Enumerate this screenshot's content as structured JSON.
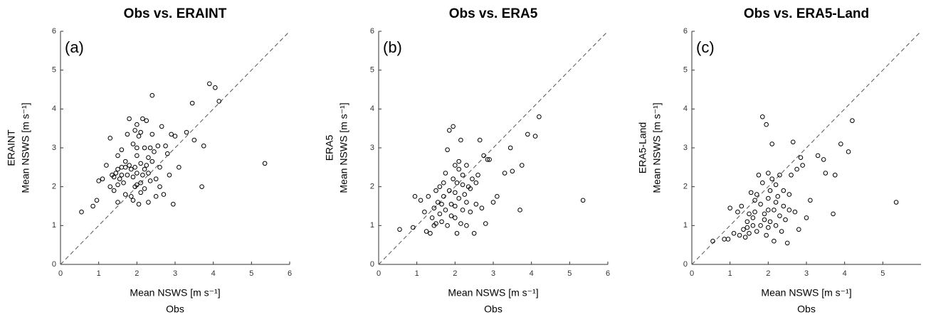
{
  "chart_data": [
    {
      "type": "scatter",
      "title": "Obs vs. ERAINT",
      "panel_label": "(a)",
      "xlabel": "Mean NSWS [m s⁻¹]",
      "xlabel2": "Obs",
      "ylabel": "Mean NSWS [m s⁻¹]",
      "ylabel2": "ERAINT",
      "color": "#000000",
      "diagonal": true,
      "xlim": [
        0,
        6
      ],
      "ylim": [
        0,
        6
      ],
      "xticks": [
        0,
        1,
        2,
        3,
        4,
        5,
        6
      ],
      "yticks": [
        0,
        1,
        2,
        3,
        4,
        5,
        6
      ],
      "x": [
        0.55,
        0.85,
        0.95,
        1.0,
        1.1,
        1.2,
        1.3,
        1.3,
        1.35,
        1.4,
        1.4,
        1.45,
        1.5,
        1.5,
        1.5,
        1.55,
        1.6,
        1.6,
        1.65,
        1.7,
        1.7,
        1.7,
        1.75,
        1.8,
        1.8,
        1.85,
        1.85,
        1.9,
        1.9,
        1.9,
        1.95,
        1.95,
        2.0,
        2.0,
        2.0,
        2.05,
        2.05,
        2.1,
        2.1,
        2.1,
        2.15,
        2.15,
        2.2,
        2.2,
        2.25,
        2.25,
        2.3,
        2.3,
        2.35,
        2.35,
        2.4,
        2.4,
        2.4,
        2.45,
        2.5,
        2.5,
        2.55,
        2.6,
        2.65,
        2.7,
        2.75,
        2.8,
        2.85,
        2.9,
        2.95,
        3.0,
        3.1,
        3.3,
        3.45,
        3.5,
        3.7,
        3.75,
        3.9,
        4.05,
        4.15,
        5.35,
        2.0,
        2.1,
        1.6,
        1.95,
        2.2,
        2.3,
        1.75,
        2.6,
        2.0,
        1.5
      ],
      "values": [
        1.35,
        1.5,
        1.65,
        2.15,
        2.2,
        2.55,
        2.0,
        3.25,
        2.3,
        1.9,
        2.25,
        2.35,
        1.6,
        2.05,
        2.8,
        2.2,
        2.5,
        2.95,
        2.1,
        1.8,
        2.5,
        2.65,
        2.3,
        3.75,
        2.55,
        1.75,
        2.45,
        3.1,
        2.25,
        1.65,
        3.45,
        2.0,
        3.6,
        2.8,
        2.35,
        1.55,
        3.3,
        3.4,
        2.6,
        2.1,
        3.75,
        2.3,
        3.0,
        1.95,
        3.7,
        2.55,
        2.35,
        1.6,
        3.0,
        2.15,
        4.35,
        3.35,
        2.65,
        2.9,
        2.2,
        1.75,
        3.05,
        2.5,
        3.55,
        1.8,
        3.05,
        2.85,
        2.3,
        3.35,
        1.55,
        3.3,
        2.5,
        3.4,
        4.15,
        3.2,
        2.0,
        3.05,
        4.65,
        4.55,
        4.2,
        2.6,
        2.05,
        1.85,
        2.3,
        2.5,
        2.45,
        2.75,
        3.35,
        2.0,
        3.0,
        2.45
      ]
    },
    {
      "type": "scatter",
      "title": "Obs vs. ERA5",
      "panel_label": "(b)",
      "xlabel": "Mean NSWS [m s⁻¹]",
      "xlabel2": "Obs",
      "ylabel": "Mean NSWS [m s⁻¹]",
      "ylabel2": "ERA5",
      "color": "#000000",
      "diagonal": true,
      "xlim": [
        0,
        6
      ],
      "ylim": [
        0,
        6
      ],
      "xticks": [
        0,
        1,
        2,
        3,
        4,
        5,
        6
      ],
      "yticks": [
        0,
        1,
        2,
        3,
        4,
        5,
        6
      ],
      "x": [
        0.55,
        0.9,
        0.95,
        1.1,
        1.2,
        1.25,
        1.3,
        1.35,
        1.4,
        1.45,
        1.5,
        1.5,
        1.55,
        1.6,
        1.6,
        1.65,
        1.7,
        1.75,
        1.75,
        1.8,
        1.8,
        1.85,
        1.85,
        1.9,
        1.95,
        1.95,
        2.0,
        2.0,
        2.05,
        2.05,
        2.1,
        2.1,
        2.15,
        2.15,
        2.2,
        2.2,
        2.25,
        2.3,
        2.3,
        2.35,
        2.4,
        2.45,
        2.5,
        2.55,
        2.6,
        2.65,
        2.7,
        2.75,
        2.8,
        2.85,
        2.9,
        3.0,
        3.1,
        3.3,
        3.45,
        3.5,
        3.7,
        3.75,
        3.9,
        4.1,
        4.2,
        5.35,
        1.7,
        1.9,
        2.0,
        2.2,
        2.4,
        2.1,
        1.65,
        2.55,
        2.3,
        1.45,
        2.0
      ],
      "values": [
        0.9,
        0.95,
        1.75,
        1.65,
        1.35,
        0.85,
        1.75,
        0.8,
        1.2,
        1.45,
        1.9,
        1.05,
        1.6,
        2.0,
        1.3,
        1.1,
        1.75,
        2.35,
        1.4,
        2.95,
        1.0,
        3.45,
        1.9,
        1.25,
        3.55,
        2.2,
        2.55,
        1.5,
        2.1,
        0.8,
        2.45,
        1.7,
        3.2,
        1.05,
        2.3,
        1.4,
        1.8,
        2.55,
        1.0,
        2.0,
        1.35,
        2.2,
        0.8,
        1.55,
        2.3,
        3.2,
        1.45,
        2.8,
        1.05,
        2.7,
        2.7,
        1.6,
        1.75,
        2.35,
        3.0,
        2.4,
        1.4,
        2.55,
        3.35,
        3.3,
        3.8,
        1.65,
        2.1,
        1.55,
        1.2,
        2.05,
        1.95,
        2.65,
        1.55,
        2.1,
        1.6,
        1.0,
        1.85
      ]
    },
    {
      "type": "scatter",
      "title": "Obs vs. ERA5-Land",
      "panel_label": "(c)",
      "xlabel": "Mean NSWS [m s⁻¹]",
      "xlabel2": "Obs",
      "ylabel": "Mean NSWS [m s⁻¹]",
      "ylabel2": "ERA5-Land",
      "color": "#000000",
      "diagonal": true,
      "xlim": [
        0,
        6
      ],
      "ylim": [
        0,
        6
      ],
      "xticks": [
        0,
        1,
        2,
        3,
        4,
        5
      ],
      "yticks": [
        0,
        1,
        2,
        3,
        4,
        5,
        6
      ],
      "x": [
        0.55,
        0.85,
        0.95,
        1.0,
        1.1,
        1.2,
        1.25,
        1.3,
        1.35,
        1.4,
        1.45,
        1.5,
        1.5,
        1.55,
        1.6,
        1.6,
        1.65,
        1.7,
        1.75,
        1.8,
        1.8,
        1.85,
        1.85,
        1.9,
        1.95,
        1.95,
        2.0,
        2.0,
        2.05,
        2.1,
        2.1,
        2.15,
        2.15,
        2.2,
        2.2,
        2.25,
        2.3,
        2.3,
        2.35,
        2.4,
        2.45,
        2.5,
        2.55,
        2.6,
        2.65,
        2.7,
        2.75,
        2.8,
        2.85,
        2.9,
        3.0,
        3.1,
        3.3,
        3.45,
        3.5,
        3.7,
        3.75,
        3.9,
        4.1,
        4.2,
        5.35,
        1.7,
        1.9,
        2.0,
        2.2,
        2.4,
        1.65,
        2.05,
        2.55,
        1.45,
        2.0
      ],
      "values": [
        0.6,
        0.65,
        0.65,
        1.45,
        0.8,
        1.35,
        0.75,
        1.5,
        0.9,
        0.7,
        1.1,
        1.3,
        0.8,
        1.85,
        1.0,
        1.2,
        1.65,
        0.85,
        2.3,
        1.55,
        1.0,
        3.8,
        2.1,
        1.3,
        3.6,
        0.75,
        2.35,
        1.7,
        1.1,
        2.2,
        3.1,
        1.4,
        0.6,
        2.05,
        1.0,
        1.75,
        2.3,
        1.25,
        0.85,
        1.9,
        1.15,
        0.55,
        1.4,
        2.3,
        3.15,
        1.35,
        2.45,
        0.9,
        2.75,
        2.55,
        1.2,
        1.65,
        2.8,
        2.7,
        2.35,
        1.3,
        2.3,
        3.1,
        2.9,
        3.7,
        1.6,
        1.8,
        1.15,
        0.95,
        1.6,
        1.5,
        1.35,
        1.9,
        1.8,
        0.95,
        1.4
      ]
    }
  ]
}
